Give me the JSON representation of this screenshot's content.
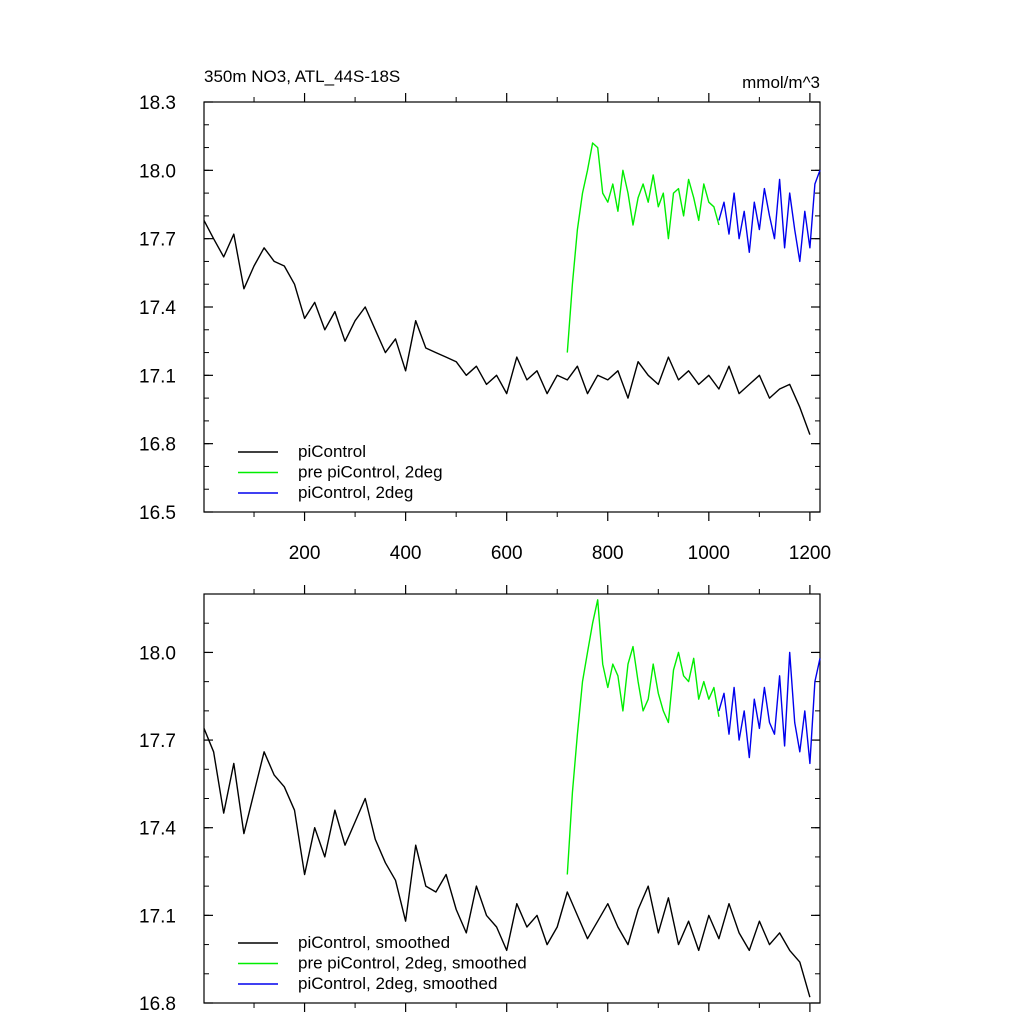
{
  "chart_data": [
    {
      "type": "line",
      "title": "350m NO3, ATL_44S-18S",
      "units": "mmol/m^3",
      "xlim": [
        1,
        1220
      ],
      "ylim": [
        16.5,
        18.3
      ],
      "xticks": [
        200,
        400,
        600,
        800,
        1000,
        1200
      ],
      "xtick_labels": [
        "200",
        "400",
        "600",
        "800",
        "1000",
        "1200"
      ],
      "yticks": [
        16.5,
        16.8,
        17.1,
        17.4,
        17.7,
        18.0,
        18.3
      ],
      "ytick_labels": [
        "16.5",
        "16.8",
        "17.1",
        "17.4",
        "17.7",
        "18.0",
        "18.3"
      ],
      "legend_position": "bottom-left",
      "series": [
        {
          "name": "piControl",
          "color": "#000000",
          "x": [
            1,
            20,
            40,
            60,
            80,
            100,
            120,
            140,
            160,
            180,
            200,
            220,
            240,
            260,
            280,
            300,
            320,
            340,
            360,
            380,
            400,
            420,
            440,
            460,
            480,
            500,
            520,
            540,
            560,
            580,
            600,
            620,
            640,
            660,
            680,
            700,
            720,
            740,
            760,
            780,
            800,
            820,
            840,
            860,
            880,
            900,
            920,
            940,
            960,
            980,
            1000,
            1020,
            1040,
            1060,
            1080,
            1100,
            1120,
            1140,
            1160,
            1180,
            1200
          ],
          "values": [
            17.78,
            17.7,
            17.62,
            17.72,
            17.48,
            17.58,
            17.66,
            17.6,
            17.58,
            17.5,
            17.35,
            17.42,
            17.3,
            17.38,
            17.25,
            17.34,
            17.4,
            17.3,
            17.2,
            17.26,
            17.12,
            17.34,
            17.22,
            17.2,
            17.18,
            17.16,
            17.1,
            17.14,
            17.06,
            17.1,
            17.02,
            17.18,
            17.08,
            17.12,
            17.02,
            17.1,
            17.08,
            17.14,
            17.02,
            17.1,
            17.08,
            17.12,
            17.0,
            17.16,
            17.1,
            17.06,
            17.18,
            17.08,
            17.12,
            17.06,
            17.1,
            17.04,
            17.14,
            17.02,
            17.06,
            17.1,
            17.0,
            17.04,
            17.06,
            16.96,
            16.84
          ]
        },
        {
          "name": "pre piControl, 2deg",
          "color": "#00ee00",
          "x": [
            720,
            730,
            740,
            750,
            760,
            770,
            780,
            790,
            800,
            810,
            820,
            830,
            840,
            850,
            860,
            870,
            880,
            890,
            900,
            910,
            920,
            930,
            940,
            950,
            960,
            970,
            980,
            990,
            1000,
            1010,
            1020
          ],
          "values": [
            17.2,
            17.5,
            17.74,
            17.9,
            18.0,
            18.12,
            18.1,
            17.9,
            17.86,
            17.94,
            17.82,
            18.0,
            17.9,
            17.76,
            17.88,
            17.94,
            17.86,
            17.98,
            17.84,
            17.9,
            17.7,
            17.9,
            17.92,
            17.8,
            17.96,
            17.88,
            17.78,
            17.94,
            17.86,
            17.84,
            17.76
          ]
        },
        {
          "name": "piControl, 2deg",
          "color": "#0000ee",
          "x": [
            1020,
            1030,
            1040,
            1050,
            1060,
            1070,
            1080,
            1090,
            1100,
            1110,
            1120,
            1130,
            1140,
            1150,
            1160,
            1170,
            1180,
            1190,
            1200,
            1210,
            1220
          ],
          "values": [
            17.78,
            17.86,
            17.72,
            17.9,
            17.7,
            17.82,
            17.64,
            17.86,
            17.74,
            17.92,
            17.8,
            17.7,
            17.96,
            17.66,
            17.9,
            17.74,
            17.6,
            17.82,
            17.66,
            17.94,
            18.0
          ]
        }
      ]
    },
    {
      "type": "line",
      "xlim": [
        1,
        1220
      ],
      "ylim": [
        16.8,
        18.2
      ],
      "yticks": [
        16.8,
        17.1,
        17.4,
        17.7,
        18.0
      ],
      "ytick_labels": [
        "16.8",
        "17.1",
        "17.4",
        "17.7",
        "18.0"
      ],
      "legend_position": "bottom-left",
      "series": [
        {
          "name": "piControl, smoothed",
          "color": "#000000",
          "x": [
            1,
            20,
            40,
            60,
            80,
            100,
            120,
            140,
            160,
            180,
            200,
            220,
            240,
            260,
            280,
            300,
            320,
            340,
            360,
            380,
            400,
            420,
            440,
            460,
            480,
            500,
            520,
            540,
            560,
            580,
            600,
            620,
            640,
            660,
            680,
            700,
            720,
            740,
            760,
            780,
            800,
            820,
            840,
            860,
            880,
            900,
            920,
            940,
            960,
            980,
            1000,
            1020,
            1040,
            1060,
            1080,
            1100,
            1120,
            1140,
            1160,
            1180,
            1200
          ],
          "values": [
            17.74,
            17.66,
            17.45,
            17.62,
            17.38,
            17.52,
            17.66,
            17.58,
            17.54,
            17.46,
            17.24,
            17.4,
            17.3,
            17.46,
            17.34,
            17.42,
            17.5,
            17.36,
            17.28,
            17.22,
            17.08,
            17.34,
            17.2,
            17.18,
            17.24,
            17.12,
            17.04,
            17.2,
            17.1,
            17.06,
            16.98,
            17.14,
            17.06,
            17.1,
            17.0,
            17.06,
            17.18,
            17.1,
            17.02,
            17.08,
            17.14,
            17.06,
            17.0,
            17.12,
            17.2,
            17.04,
            17.16,
            17.0,
            17.08,
            16.98,
            17.1,
            17.02,
            17.14,
            17.04,
            16.98,
            17.08,
            17.0,
            17.04,
            16.98,
            16.94,
            16.82
          ]
        },
        {
          "name": "pre piControl, 2deg, smoothed",
          "color": "#00ee00",
          "x": [
            720,
            730,
            740,
            750,
            760,
            770,
            780,
            790,
            800,
            810,
            820,
            830,
            840,
            850,
            860,
            870,
            880,
            890,
            900,
            910,
            920,
            930,
            940,
            950,
            960,
            970,
            980,
            990,
            1000,
            1010,
            1020
          ],
          "values": [
            17.24,
            17.52,
            17.72,
            17.9,
            18.0,
            18.1,
            18.18,
            17.96,
            17.88,
            17.96,
            17.92,
            17.8,
            17.96,
            18.02,
            17.9,
            17.8,
            17.84,
            17.96,
            17.86,
            17.8,
            17.76,
            17.94,
            18.0,
            17.92,
            17.9,
            17.98,
            17.84,
            17.9,
            17.84,
            17.88,
            17.78
          ]
        },
        {
          "name": "piControl, 2deg, smoothed",
          "color": "#0000ee",
          "x": [
            1020,
            1030,
            1040,
            1050,
            1060,
            1070,
            1080,
            1090,
            1100,
            1110,
            1120,
            1130,
            1140,
            1150,
            1160,
            1170,
            1180,
            1190,
            1200,
            1210,
            1220
          ],
          "values": [
            17.8,
            17.86,
            17.72,
            17.88,
            17.7,
            17.8,
            17.64,
            17.84,
            17.74,
            17.88,
            17.76,
            17.72,
            17.92,
            17.68,
            18.0,
            17.76,
            17.66,
            17.8,
            17.62,
            17.9,
            17.98
          ]
        }
      ]
    }
  ]
}
